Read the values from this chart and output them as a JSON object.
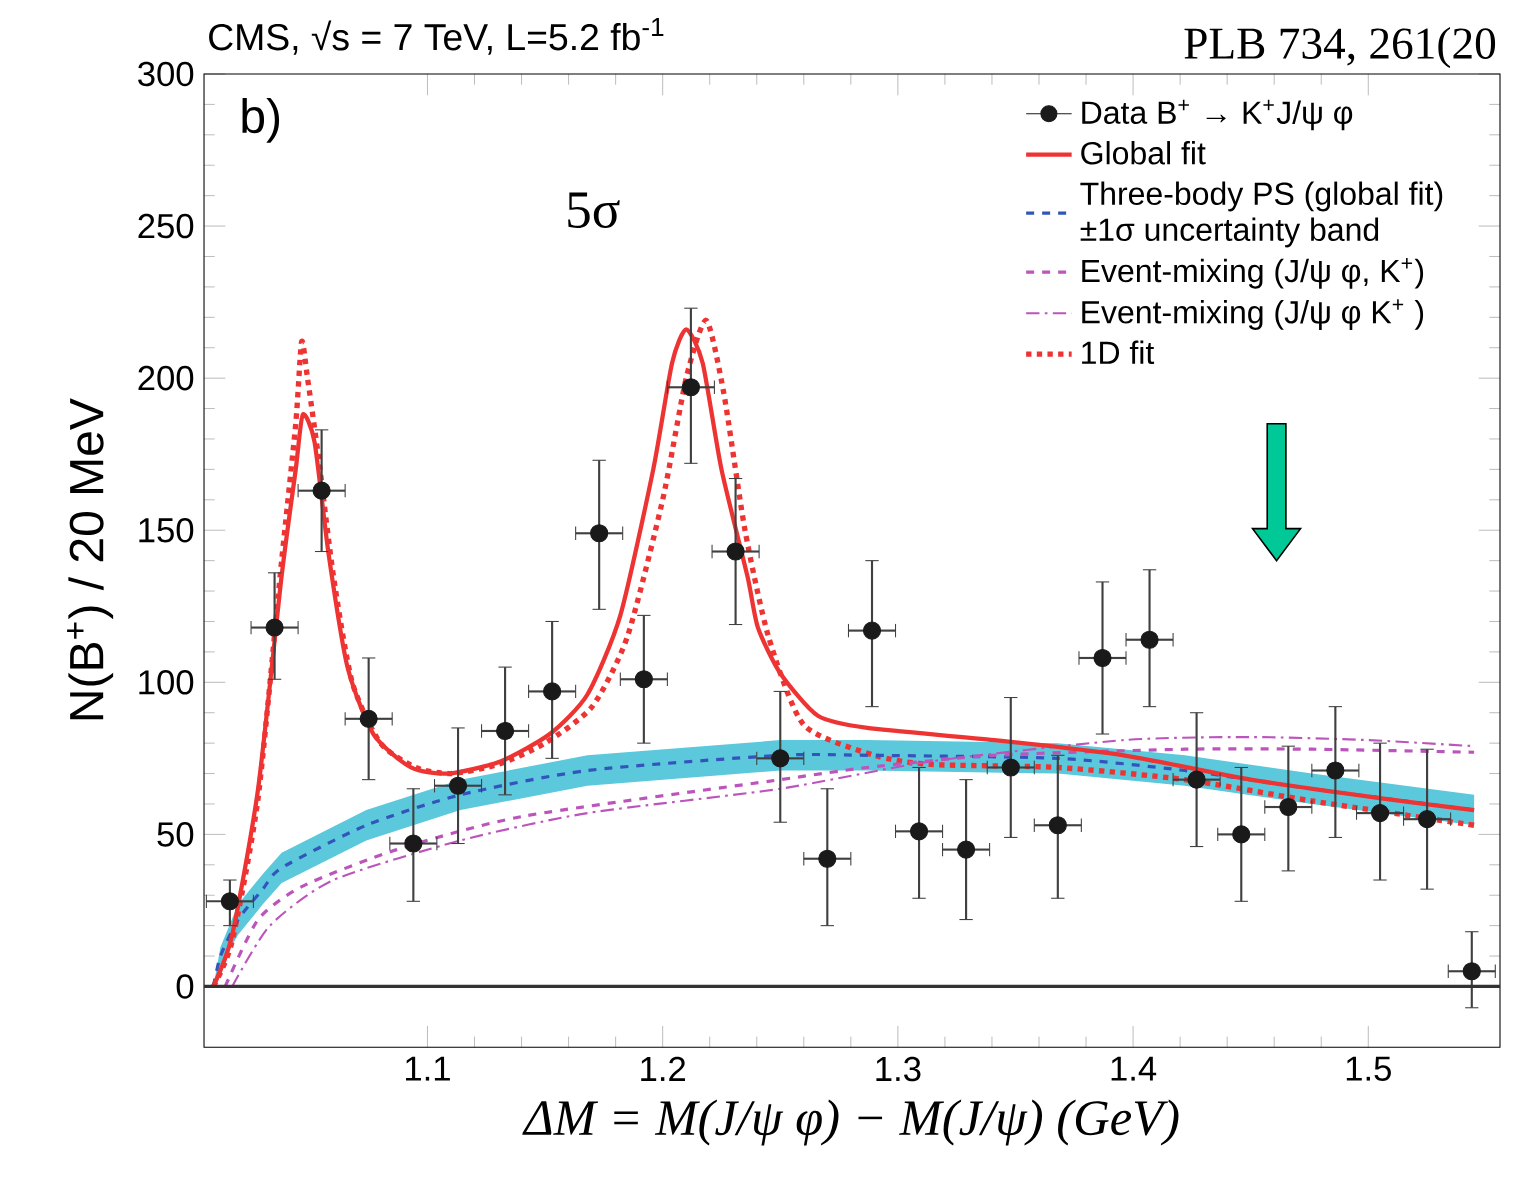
{
  "chart_data": {
    "type": "line",
    "title": "CMS, √s = 7 TeV, L=5.2 fb$^{-1}$",
    "xlabel": "ΔM = M(J/ψ φ) − M(J/ψ)   (GeV)",
    "ylabel": "N(B$^{+}$) / 20 MeV",
    "annotations": [
      "b)",
      "5σ",
      "PLB 734, 261(20"
    ],
    "xlim": [
      1.005,
      1.556
    ],
    "xticks": [
      1.1,
      1.2,
      1.3,
      1.4,
      1.5
    ],
    "ylim": [
      -20,
      300
    ],
    "yticks": [
      0,
      50,
      100,
      150,
      200,
      250,
      300
    ],
    "legend": "top right",
    "grid": false,
    "ref_lines": [
      {
        "axis": "y",
        "value": 0,
        "color": "#333333"
      }
    ],
    "series": [
      {
        "name": "Data B$^{+}$ → K$^{+}$J/ψ φ",
        "type": "scatter",
        "marker": "circle",
        "color": "#1a1a1a",
        "x": [
          1.016,
          1.035,
          1.055,
          1.075,
          1.094,
          1.113,
          1.133,
          1.153,
          1.173,
          1.192,
          1.212,
          1.231,
          1.25,
          1.27,
          1.289,
          1.309,
          1.329,
          1.348,
          1.368,
          1.387,
          1.407,
          1.427,
          1.446,
          1.466,
          1.486,
          1.505,
          1.525,
          1.544
        ],
        "values": [
          28,
          118,
          163,
          88,
          47,
          66,
          84,
          97,
          149,
          101,
          197,
          143,
          75,
          42,
          117,
          51,
          45,
          72,
          53,
          108,
          114,
          68,
          50,
          59,
          71,
          57,
          55,
          5
        ],
        "errors": [
          [
            20,
            35
          ],
          [
            101,
            136
          ],
          [
            143,
            183
          ],
          [
            68,
            108
          ],
          [
            28,
            65
          ],
          [
            47,
            85
          ],
          [
            63,
            105
          ],
          [
            75,
            120
          ],
          [
            124,
            173
          ],
          [
            80,
            122
          ],
          [
            172,
            223
          ],
          [
            119,
            167
          ],
          [
            54,
            97
          ],
          [
            20,
            65
          ],
          [
            92,
            140
          ],
          [
            29,
            72
          ],
          [
            22,
            68
          ],
          [
            49,
            95
          ],
          [
            29,
            76
          ],
          [
            83,
            133
          ],
          [
            92,
            137
          ],
          [
            46,
            90
          ],
          [
            28,
            72
          ],
          [
            38,
            79
          ],
          [
            49,
            92
          ],
          [
            35,
            80
          ],
          [
            32,
            78
          ],
          [
            -7,
            18
          ]
        ],
        "xerrors": [
          0.01,
          0.01,
          0.01,
          0.01,
          0.01,
          0.01,
          0.01,
          0.01,
          0.01,
          0.01,
          0.01,
          0.01,
          0.01,
          0.01,
          0.01,
          0.01,
          0.01,
          0.01,
          0.01,
          0.01,
          0.01,
          0.01,
          0.01,
          0.01,
          0.01,
          0.01,
          0.01,
          0.01
        ]
      },
      {
        "name": "Global fit",
        "line_style": "solid",
        "color": "#ee3333",
        "x": [
          1.009,
          1.017,
          1.028,
          1.038,
          1.044,
          1.047,
          1.052,
          1.058,
          1.066,
          1.077,
          1.093,
          1.109,
          1.131,
          1.152,
          1.168,
          1.182,
          1.196,
          1.204,
          1.21,
          1.217,
          1.225,
          1.236,
          1.2405,
          1.25,
          1.266,
          1.287,
          1.341,
          1.396,
          1.45,
          1.504,
          1.545
        ],
        "values": [
          0,
          17,
          65,
          135,
          170,
          188,
          179,
          142,
          105,
          83,
          72,
          70,
          74,
          83,
          96,
          122,
          170,
          205,
          216,
          205,
          170,
          135,
          118,
          103,
          89,
          85,
          81,
          76,
          68,
          62,
          58
        ]
      },
      {
        "name": "Three-body PS (global fit) ±1σ uncertainty band",
        "line_style": "dashed",
        "color": "#3355bb",
        "x": [
          1.009,
          1.012,
          1.0195,
          1.03,
          1.038,
          1.074,
          1.114,
          1.168,
          1.25,
          1.287,
          1.368,
          1.422,
          1.476,
          1.545
        ],
        "values": [
          0,
          10,
          22,
          32,
          39,
          53,
          63,
          71,
          76,
          76,
          75,
          71,
          65,
          58
        ],
        "lower": [
          0,
          7,
          17,
          27,
          34,
          48,
          58,
          66,
          71,
          71,
          70,
          66,
          60,
          53
        ],
        "upper": [
          0,
          13,
          27,
          37,
          44,
          58,
          68,
          76,
          81,
          81,
          80,
          76,
          70,
          63
        ]
      },
      {
        "name": "Event-mixing (J/ψ φ, K$^{+}$)",
        "line_style": "dashed",
        "color": "#bb55bb",
        "x": [
          1.014,
          1.028,
          1.047,
          1.087,
          1.141,
          1.25,
          1.287,
          1.341,
          1.422,
          1.476,
          1.545
        ],
        "values": [
          0,
          22,
          33,
          45,
          56,
          68,
          72,
          76,
          78,
          78,
          77
        ]
      },
      {
        "name": "Event-mixing (J/ψ φ K$^{+}$ )",
        "line_style": "dashdot",
        "color": "#bb55bb",
        "x": [
          1.017,
          1.033,
          1.06,
          1.114,
          1.168,
          1.25,
          1.314,
          1.396,
          1.45,
          1.5,
          1.545
        ],
        "values": [
          0,
          20,
          35,
          48,
          57,
          65,
          74,
          81,
          82,
          81,
          79
        ]
      },
      {
        "name": "1D fit",
        "line_style": "dotted",
        "color": "#ee3333",
        "x": [
          1.009,
          1.017,
          1.028,
          1.038,
          1.044,
          1.0465,
          1.049,
          1.0535,
          1.06,
          1.068,
          1.08,
          1.095,
          1.11,
          1.13,
          1.15,
          1.17,
          1.185,
          1.2,
          1.21,
          1.2185,
          1.226,
          1.235,
          1.245,
          1.26,
          1.29,
          1.314,
          1.368,
          1.422,
          1.476,
          1.545
        ],
        "values": [
          0,
          15,
          62,
          140,
          185,
          212,
          200,
          175,
          135,
          100,
          80,
          72,
          70,
          73,
          80,
          92,
          115,
          160,
          200,
          219,
          195,
          150,
          115,
          86,
          76,
          73,
          72,
          68,
          61,
          53
        ]
      }
    ]
  }
}
